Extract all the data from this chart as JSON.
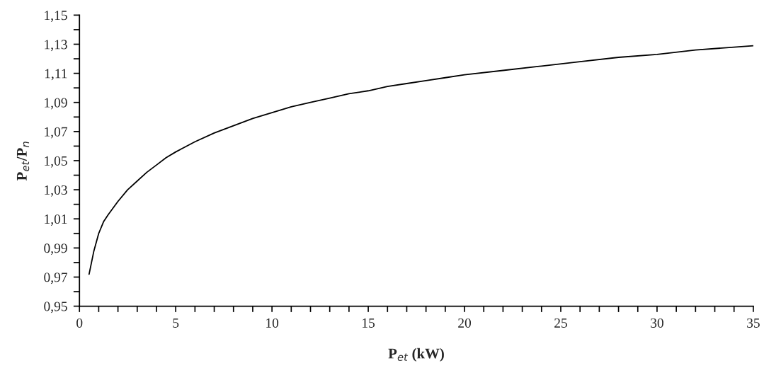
{
  "chart_data": {
    "type": "line",
    "xlabel": "P$_{et}$ (kW)",
    "ylabel": "P$_{et}$/P$_{n}$",
    "x": [
      0.5,
      0.75,
      1,
      1.25,
      1.5,
      2,
      2.5,
      3,
      3.5,
      4,
      4.5,
      5,
      6,
      7,
      8,
      9,
      10,
      11,
      12,
      13,
      14,
      15,
      16,
      17,
      18,
      19,
      20,
      22,
      24,
      26,
      28,
      30,
      32,
      34,
      35
    ],
    "series": [
      {
        "color": "#000000",
        "values": [
          0.972,
          0.988,
          1.0,
          1.008,
          1.013,
          1.022,
          1.03,
          1.036,
          1.042,
          1.047,
          1.052,
          1.056,
          1.063,
          1.069,
          1.074,
          1.079,
          1.083,
          1.087,
          1.09,
          1.093,
          1.096,
          1.098,
          1.101,
          1.103,
          1.105,
          1.107,
          1.109,
          1.112,
          1.115,
          1.118,
          1.121,
          1.123,
          1.126,
          1.128,
          1.129
        ]
      }
    ],
    "xlim": [
      0,
      35
    ],
    "ylim": [
      0.95,
      1.15
    ],
    "xticks": [
      0,
      {
        "value": 1,
        "label": null
      },
      {
        "value": 2,
        "label": null
      },
      {
        "value": 3,
        "label": null
      },
      {
        "value": 4,
        "label": null
      },
      5,
      {
        "value": 6,
        "label": null
      },
      {
        "value": 7,
        "label": null
      },
      {
        "value": 8,
        "label": null
      },
      {
        "value": 9,
        "label": null
      },
      10,
      {
        "value": 11,
        "label": null
      },
      {
        "value": 12,
        "label": null
      },
      {
        "value": 13,
        "label": null
      },
      {
        "value": 14,
        "label": null
      },
      15,
      {
        "value": 16,
        "label": null
      },
      {
        "value": 17,
        "label": null
      },
      {
        "value": 18,
        "label": null
      },
      {
        "value": 19,
        "label": null
      },
      20,
      {
        "value": 21,
        "label": null
      },
      {
        "value": 22,
        "label": null
      },
      {
        "value": 23,
        "label": null
      },
      {
        "value": 24,
        "label": null
      },
      25,
      {
        "value": 26,
        "label": null
      },
      {
        "value": 27,
        "label": null
      },
      {
        "value": 28,
        "label": null
      },
      {
        "value": 29,
        "label": null
      },
      30,
      {
        "value": 31,
        "label": null
      },
      {
        "value": 32,
        "label": null
      },
      {
        "value": 33,
        "label": null
      },
      {
        "value": 34,
        "label": null
      },
      35
    ],
    "yticks": [
      {
        "value": 0.95,
        "label": "0,95"
      },
      {
        "value": 0.96,
        "label": null
      },
      {
        "value": 0.97,
        "label": "0,97"
      },
      {
        "value": 0.98,
        "label": null
      },
      {
        "value": 0.99,
        "label": "0,99"
      },
      {
        "value": 1.0,
        "label": null
      },
      {
        "value": 1.01,
        "label": "1,01"
      },
      {
        "value": 1.02,
        "label": null
      },
      {
        "value": 1.03,
        "label": "1,03"
      },
      {
        "value": 1.04,
        "label": null
      },
      {
        "value": 1.05,
        "label": "1,05"
      },
      {
        "value": 1.06,
        "label": null
      },
      {
        "value": 1.07,
        "label": "1,07"
      },
      {
        "value": 1.08,
        "label": null
      },
      {
        "value": 1.09,
        "label": "1,09"
      },
      {
        "value": 1.1,
        "label": null
      },
      {
        "value": 1.11,
        "label": "1,11"
      },
      {
        "value": 1.12,
        "label": null
      },
      {
        "value": 1.13,
        "label": "1,13"
      },
      {
        "value": 1.14,
        "label": null
      },
      {
        "value": 1.15,
        "label": "1,15"
      }
    ],
    "grid": false,
    "marker": "none",
    "line_style": "solid"
  }
}
